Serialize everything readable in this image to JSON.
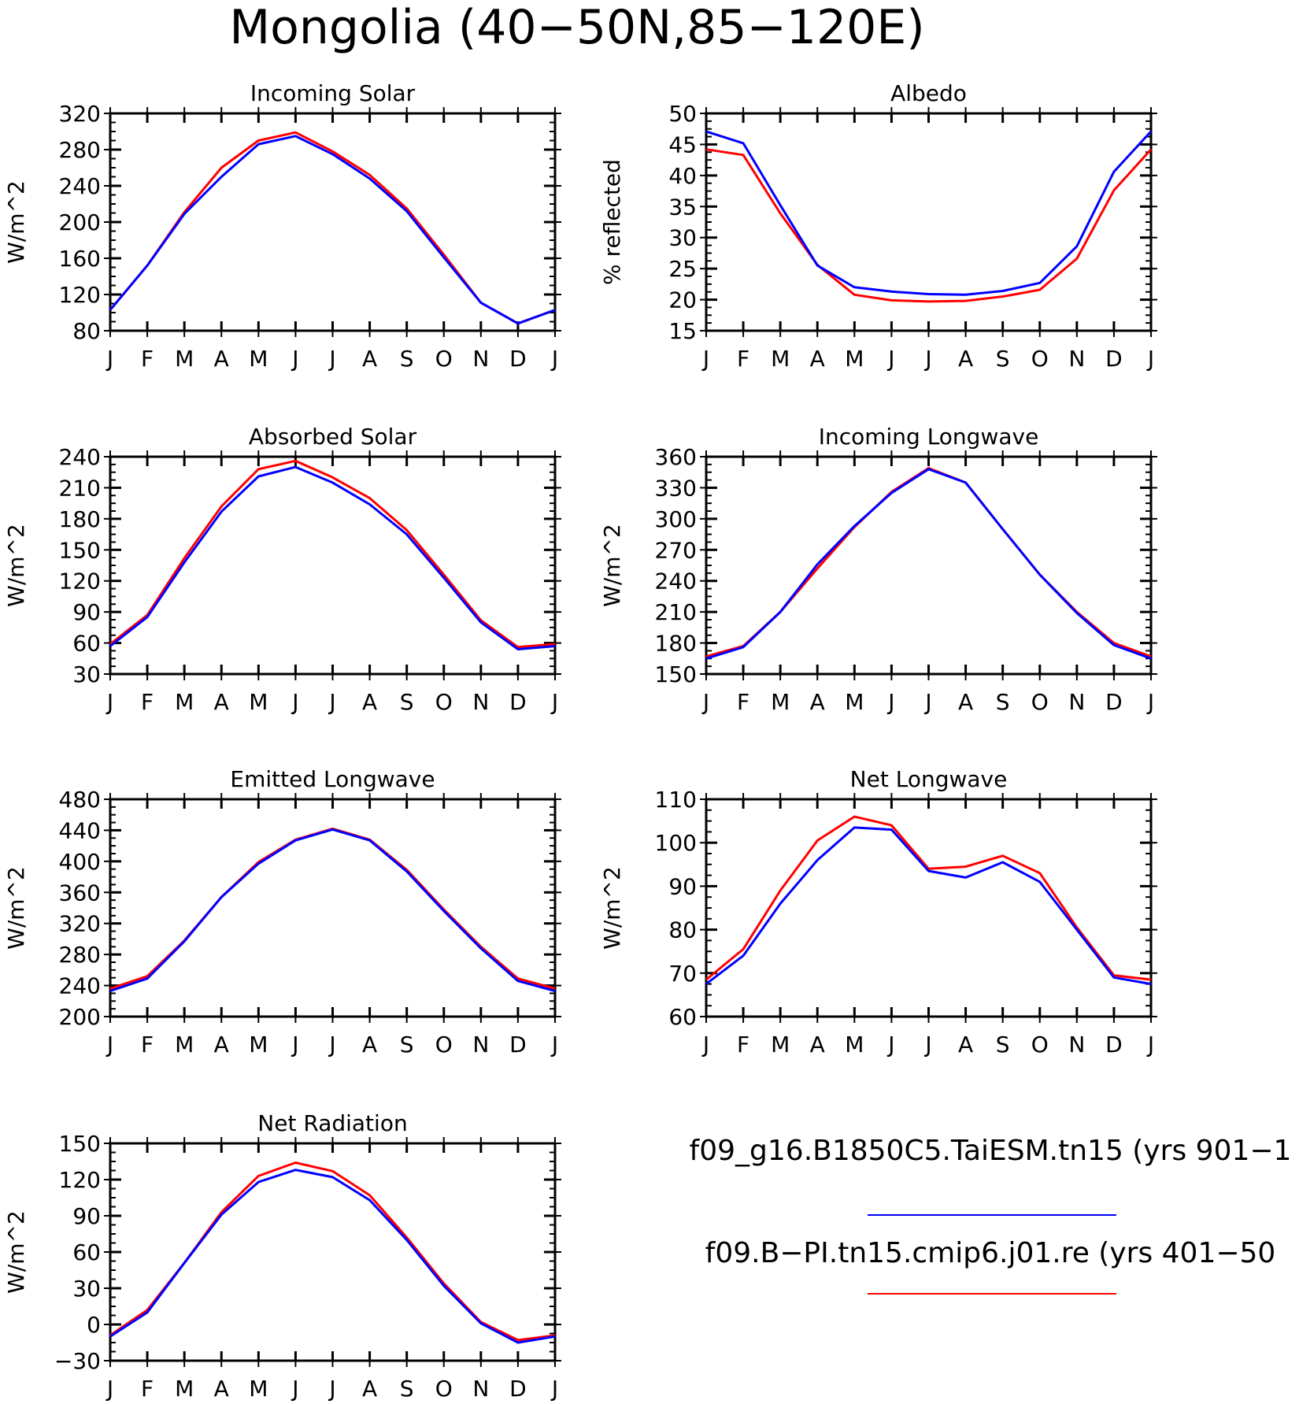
{
  "title": "Mongolia (40−50N,85−120E)",
  "months": [
    "J",
    "F",
    "M",
    "A",
    "M",
    "J",
    "J",
    "A",
    "S",
    "O",
    "N",
    "D",
    "J"
  ],
  "legend": [
    {
      "label": "f09_g16.B1850C5.TaiESM.tn15 (yrs 901−1",
      "color": "#0000ff"
    },
    {
      "label": "f09.B−PI.tn15.cmip6.j01.re (yrs 401−50",
      "color": "#ff0000"
    }
  ],
  "chart_data": [
    {
      "type": "line",
      "title": "Incoming Solar",
      "ylabel": "W/m^2",
      "ylim": [
        80,
        320
      ],
      "yticks": [
        80,
        120,
        160,
        200,
        240,
        280,
        320
      ],
      "categories": [
        "J",
        "F",
        "M",
        "A",
        "M",
        "J",
        "J",
        "A",
        "S",
        "O",
        "N",
        "D",
        "J"
      ],
      "series": [
        {
          "color": "#ff0000",
          "values": [
            103,
            152,
            211,
            260,
            290,
            299,
            278,
            252,
            215,
            164,
            111,
            88,
            103
          ]
        },
        {
          "color": "#0000ff",
          "values": [
            103,
            152,
            209,
            250,
            286,
            295,
            275,
            248,
            212,
            161,
            111,
            88,
            103
          ]
        }
      ]
    },
    {
      "type": "line",
      "title": "Albedo",
      "ylabel": "% reflected",
      "ylim": [
        15,
        50
      ],
      "yticks": [
        15,
        20,
        25,
        30,
        35,
        40,
        45,
        50
      ],
      "categories": [
        "J",
        "F",
        "M",
        "A",
        "M",
        "J",
        "J",
        "A",
        "S",
        "O",
        "N",
        "D",
        "J"
      ],
      "series": [
        {
          "color": "#ff0000",
          "values": [
            44.2,
            43.3,
            33.9,
            25.6,
            20.8,
            19.9,
            19.7,
            19.8,
            20.5,
            21.6,
            26.6,
            37.6,
            44.2
          ]
        },
        {
          "color": "#0000ff",
          "values": [
            47.1,
            45.2,
            35.2,
            25.5,
            22.0,
            21.3,
            20.9,
            20.8,
            21.4,
            22.7,
            28.6,
            40.6,
            47.1
          ]
        }
      ]
    },
    {
      "type": "line",
      "title": "Absorbed Solar",
      "ylabel": "W/m^2",
      "ylim": [
        30,
        240
      ],
      "yticks": [
        30,
        60,
        90,
        120,
        150,
        180,
        210,
        240
      ],
      "categories": [
        "J",
        "F",
        "M",
        "A",
        "M",
        "J",
        "J",
        "A",
        "S",
        "O",
        "N",
        "D",
        "J"
      ],
      "series": [
        {
          "color": "#ff0000",
          "values": [
            59,
            87,
            142,
            192,
            228,
            236,
            220,
            200,
            169,
            126,
            82,
            56,
            59
          ]
        },
        {
          "color": "#0000ff",
          "values": [
            57,
            85,
            138,
            187,
            221,
            230,
            215,
            194,
            165,
            123,
            80,
            54,
            57
          ]
        }
      ]
    },
    {
      "type": "line",
      "title": "Incoming Longwave",
      "ylabel": "W/m^2",
      "ylim": [
        150,
        360
      ],
      "yticks": [
        150,
        180,
        210,
        240,
        270,
        300,
        330,
        360
      ],
      "categories": [
        "J",
        "F",
        "M",
        "A",
        "M",
        "J",
        "J",
        "A",
        "S",
        "O",
        "N",
        "D",
        "J"
      ],
      "series": [
        {
          "color": "#ff0000",
          "values": [
            167,
            177,
            210,
            252,
            292,
            326,
            349,
            335,
            290,
            246,
            210,
            180,
            167
          ]
        },
        {
          "color": "#0000ff",
          "values": [
            165,
            176,
            210,
            256,
            293,
            325,
            348,
            335,
            290,
            246,
            209,
            178,
            165
          ]
        }
      ]
    },
    {
      "type": "line",
      "title": "Emitted Longwave",
      "ylabel": "W/m^2",
      "ylim": [
        200,
        480
      ],
      "yticks": [
        200,
        240,
        280,
        320,
        360,
        400,
        440,
        480
      ],
      "categories": [
        "J",
        "F",
        "M",
        "A",
        "M",
        "J",
        "J",
        "A",
        "S",
        "O",
        "N",
        "D",
        "J"
      ],
      "series": [
        {
          "color": "#ff0000",
          "values": [
            236,
            252,
            298,
            354,
            399,
            428,
            442,
            428,
            389,
            338,
            290,
            249,
            236
          ]
        },
        {
          "color": "#0000ff",
          "values": [
            233,
            249,
            297,
            354,
            397,
            427,
            441,
            427,
            387,
            336,
            288,
            246,
            233
          ]
        }
      ]
    },
    {
      "type": "line",
      "title": "Net Longwave",
      "ylabel": "W/m^2",
      "ylim": [
        60,
        110
      ],
      "yticks": [
        60,
        70,
        80,
        90,
        100,
        110
      ],
      "categories": [
        "J",
        "F",
        "M",
        "A",
        "M",
        "J",
        "J",
        "A",
        "S",
        "O",
        "N",
        "D",
        "J"
      ],
      "series": [
        {
          "color": "#ff0000",
          "values": [
            68.5,
            75.5,
            89.0,
            100.5,
            106.0,
            104.0,
            94.0,
            94.5,
            97.0,
            93.0,
            80.5,
            69.5,
            68.5
          ]
        },
        {
          "color": "#0000ff",
          "values": [
            67.5,
            74.0,
            86.0,
            96.0,
            103.5,
            103.0,
            93.5,
            92.0,
            95.5,
            91.0,
            80.0,
            69.0,
            67.5
          ]
        }
      ]
    },
    {
      "type": "line",
      "title": "Net Radiation",
      "ylabel": "W/m^2",
      "ylim": [
        -30,
        150
      ],
      "yticks": [
        -30,
        0,
        30,
        60,
        90,
        120,
        150
      ],
      "categories": [
        "J",
        "F",
        "M",
        "A",
        "M",
        "J",
        "J",
        "A",
        "S",
        "O",
        "N",
        "D",
        "J"
      ],
      "series": [
        {
          "color": "#ff0000",
          "values": [
            -9,
            12,
            51,
            93,
            123,
            134,
            127,
            107,
            72,
            34,
            2,
            -13,
            -9
          ]
        },
        {
          "color": "#0000ff",
          "values": [
            -10,
            10,
            51,
            91,
            118,
            128,
            122,
            103,
            70,
            32,
            1,
            -15,
            -10
          ]
        }
      ]
    }
  ]
}
